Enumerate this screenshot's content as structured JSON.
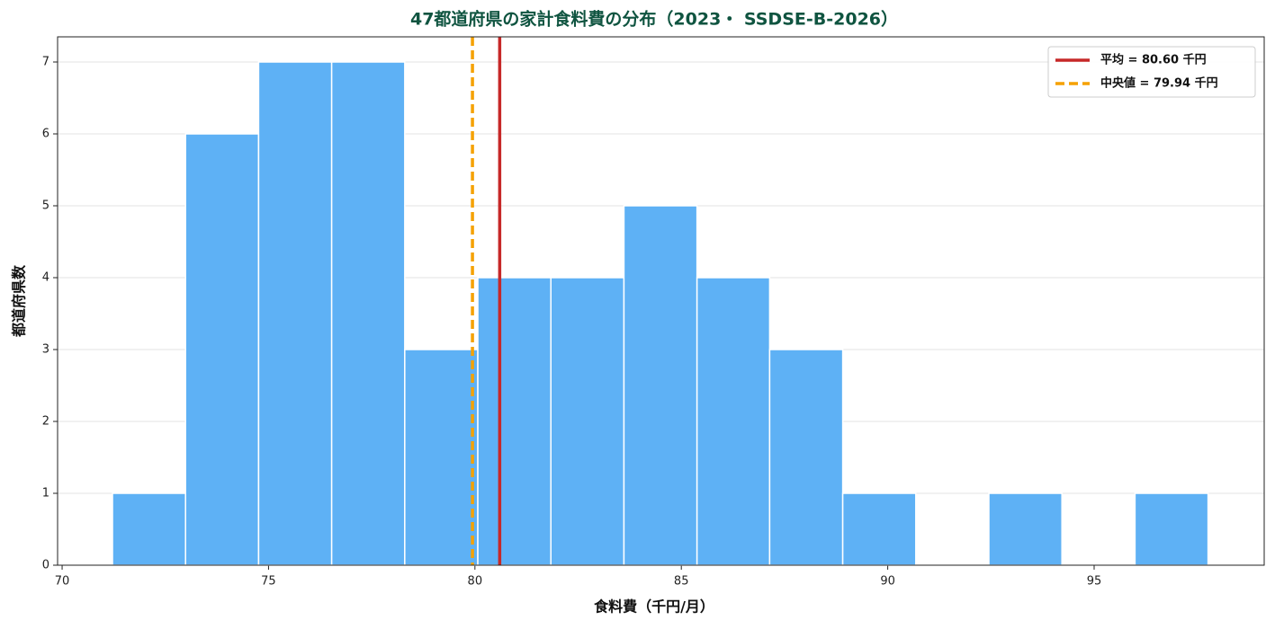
{
  "chart_data": {
    "type": "histogram",
    "title": "47都道府県の家計食料費の分布（2023・ SSDSE-B-2026）",
    "x_label": "食料費（千円/月）",
    "y_label": "都道府県数",
    "bins": [
      71.22,
      72.99,
      74.76,
      76.53,
      78.3,
      80.07,
      81.84,
      83.61,
      85.38,
      87.14,
      88.91,
      90.68,
      92.45,
      94.22,
      95.99,
      97.76
    ],
    "values": [
      1,
      6,
      7,
      7,
      3,
      4,
      4,
      5,
      4,
      3,
      1,
      0,
      1,
      0,
      1
    ],
    "color": "#5eb1f5",
    "xlim": [
      69.89,
      99.12
    ],
    "ylim": [
      0,
      7.35
    ],
    "xticks": [
      70,
      75,
      80,
      85,
      90,
      95
    ],
    "yticks": [
      0,
      1,
      2,
      3,
      4,
      5,
      6,
      7
    ],
    "grid": true,
    "legend": "upper right",
    "vlines": [
      {
        "name": "平均 = 80.60 千円",
        "value": 80.6,
        "color": "#c62828",
        "style": "solid"
      },
      {
        "name": "中央値 = 79.94 千円",
        "value": 79.94,
        "color": "#f5a100",
        "style": "dashed"
      }
    ]
  }
}
